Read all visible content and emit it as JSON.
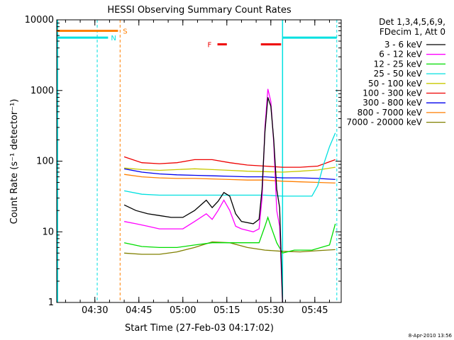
{
  "chart_data": {
    "type": "line",
    "title": "HESSI Observing Summary Count Rates",
    "xlabel": "Start Time (27-Feb-03 04:17:02)",
    "ylabel": "Count Rate (s⁻¹ detector⁻¹)",
    "ylog": true,
    "ylim": [
      1,
      10000
    ],
    "y_ticks": [
      1,
      10,
      100,
      1000,
      10000
    ],
    "y_tick_labels": [
      "1",
      "10",
      "100",
      "1000",
      "10000"
    ],
    "x_ticks": [
      30,
      45,
      60,
      75,
      90,
      105
    ],
    "x_tick_labels": [
      "04:30",
      "04:45",
      "05:00",
      "05:15",
      "05:30",
      "05:45"
    ],
    "xlim_minutes_after_04": [
      17,
      54
    ],
    "date_stamp": "8-Apr-2010 13:56",
    "legend": {
      "header": [
        "Det 1,3,4,5,6,9,",
        "FDecim 1, Att 0"
      ],
      "position": "right"
    },
    "flags": [
      {
        "label": "S",
        "color": "#ff7f00",
        "y": 7000,
        "segments": [
          [
            17,
            37.9
          ]
        ],
        "marker_minute": 38.6
      },
      {
        "label": "N",
        "color": "#00e0e0",
        "y": 5600,
        "segments": [
          [
            17,
            34.5
          ],
          [
            94.0,
            112.5
          ]
        ],
        "marker_minute": 34.5,
        "extra_markers": [
          112.5
        ]
      },
      {
        "label": "F",
        "color": "#ee0000",
        "y": 4500,
        "segments": [
          [
            71.8,
            75.0
          ],
          [
            86.6,
            93.5
          ]
        ]
      }
    ],
    "event_lines": [
      {
        "minute": 30.8,
        "color": "#00e0e0",
        "style": "dashed"
      },
      {
        "minute": 38.6,
        "color": "#ff7f00",
        "style": "dashed"
      },
      {
        "minute": 94.0,
        "color": "#00e0e0",
        "style": "solid"
      },
      {
        "minute": 112.5,
        "color": "#00e0e0",
        "style": "dashed"
      },
      {
        "minute": 17.3,
        "color": "#00e0e0",
        "style": "solid"
      }
    ],
    "series": [
      {
        "name": "3 - 6 keV",
        "color": "#000000",
        "x": [
          40,
          44,
          48,
          52,
          56,
          60,
          64,
          68,
          70,
          72,
          74,
          76,
          78,
          80,
          84,
          86,
          87,
          88,
          89,
          90,
          91,
          92,
          93,
          94
        ],
        "y": [
          24,
          20,
          18,
          17,
          16,
          16,
          20,
          28,
          22,
          27,
          36,
          32,
          18,
          14,
          13,
          15,
          40,
          260,
          800,
          600,
          200,
          40,
          22,
          1
        ]
      },
      {
        "name": "6 - 12 keV",
        "color": "#ff00ff",
        "x": [
          40,
          44,
          48,
          52,
          56,
          60,
          64,
          68,
          70,
          72,
          74,
          76,
          78,
          80,
          84,
          86,
          87,
          88,
          89,
          90,
          91,
          92,
          93,
          94
        ],
        "y": [
          14,
          13,
          12,
          11,
          11,
          11,
          14,
          18,
          15,
          20,
          28,
          20,
          12,
          11,
          10,
          11,
          30,
          300,
          1050,
          700,
          180,
          20,
          12,
          1
        ]
      },
      {
        "name": "12 - 25 keV",
        "color": "#00dd00",
        "x": [
          40,
          46,
          52,
          58,
          64,
          70,
          76,
          82,
          86,
          88,
          89,
          90,
          92,
          94,
          98,
          104,
          110,
          112
        ],
        "y": [
          7,
          6.2,
          6,
          6,
          6.5,
          7,
          7,
          7,
          7,
          12,
          16,
          12,
          7,
          5,
          5.5,
          5.5,
          6.5,
          13
        ]
      },
      {
        "name": "25 - 50 keV",
        "color": "#00e0e0",
        "x": [
          40,
          46,
          52,
          58,
          64,
          70,
          76,
          82,
          88,
          94,
          100,
          104,
          106,
          108,
          110,
          112
        ],
        "y": [
          38,
          34,
          33,
          33,
          33,
          33,
          33,
          33,
          33,
          32,
          32,
          32,
          45,
          90,
          160,
          250
        ]
      },
      {
        "name": "50 - 100 keV",
        "color": "#c8c800",
        "x": [
          40,
          46,
          52,
          58,
          64,
          70,
          76,
          82,
          88,
          94,
          100,
          106,
          112
        ],
        "y": [
          80,
          76,
          74,
          76,
          78,
          76,
          74,
          72,
          71,
          70,
          72,
          75,
          82
        ]
      },
      {
        "name": "100 - 300 keV",
        "color": "#ee0000",
        "x": [
          40,
          46,
          52,
          58,
          64,
          70,
          76,
          82,
          88,
          94,
          100,
          106,
          112
        ],
        "y": [
          115,
          95,
          92,
          95,
          105,
          105,
          95,
          88,
          85,
          82,
          82,
          85,
          105
        ]
      },
      {
        "name": "300 - 800 keV",
        "color": "#0000ee",
        "x": [
          40,
          46,
          52,
          58,
          64,
          70,
          76,
          82,
          88,
          94,
          100,
          106,
          112
        ],
        "y": [
          78,
          70,
          66,
          64,
          63,
          62,
          61,
          60,
          60,
          58,
          58,
          57,
          55
        ]
      },
      {
        "name": "800 - 7000 keV",
        "color": "#ff7f00",
        "x": [
          40,
          46,
          52,
          58,
          64,
          70,
          76,
          82,
          88,
          94,
          100,
          106,
          112
        ],
        "y": [
          65,
          60,
          58,
          57,
          57,
          56,
          55,
          54,
          54,
          52,
          51,
          50,
          49
        ]
      },
      {
        "name": "7000 - 20000 keV",
        "color": "#808000",
        "x": [
          40,
          46,
          52,
          58,
          64,
          70,
          76,
          82,
          88,
          94,
          100,
          106,
          112
        ],
        "y": [
          5,
          4.8,
          4.8,
          5.2,
          6,
          7.2,
          7,
          6,
          5.5,
          5.3,
          5.2,
          5.4,
          5.6
        ]
      }
    ]
  }
}
